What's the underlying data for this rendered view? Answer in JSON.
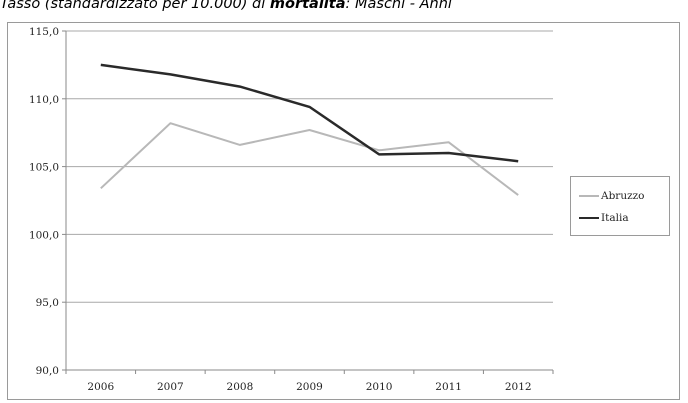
{
  "header": {
    "title_prefix": "Tasso (standardizzato per 10.000) di ",
    "title_bold": "mortalità",
    "title_suffix": ": Maschi - Anni"
  },
  "chart_data": {
    "type": "line",
    "x": [
      "2006",
      "2007",
      "2008",
      "2009",
      "2010",
      "2011",
      "2012"
    ],
    "series": [
      {
        "name": "Abruzzo",
        "color": "#b8b8b8",
        "values": [
          103.4,
          108.2,
          106.6,
          107.7,
          106.2,
          106.8,
          102.9
        ]
      },
      {
        "name": "Italia",
        "color": "#2a2a2a",
        "values": [
          112.5,
          111.8,
          110.9,
          109.4,
          105.9,
          106.0,
          105.4
        ]
      }
    ],
    "yticks": [
      "90,0",
      "95,0",
      "100,0",
      "105,0",
      "110,0",
      "115,0"
    ],
    "ylim": [
      90,
      115
    ],
    "grid": true,
    "legend_position": "right"
  }
}
